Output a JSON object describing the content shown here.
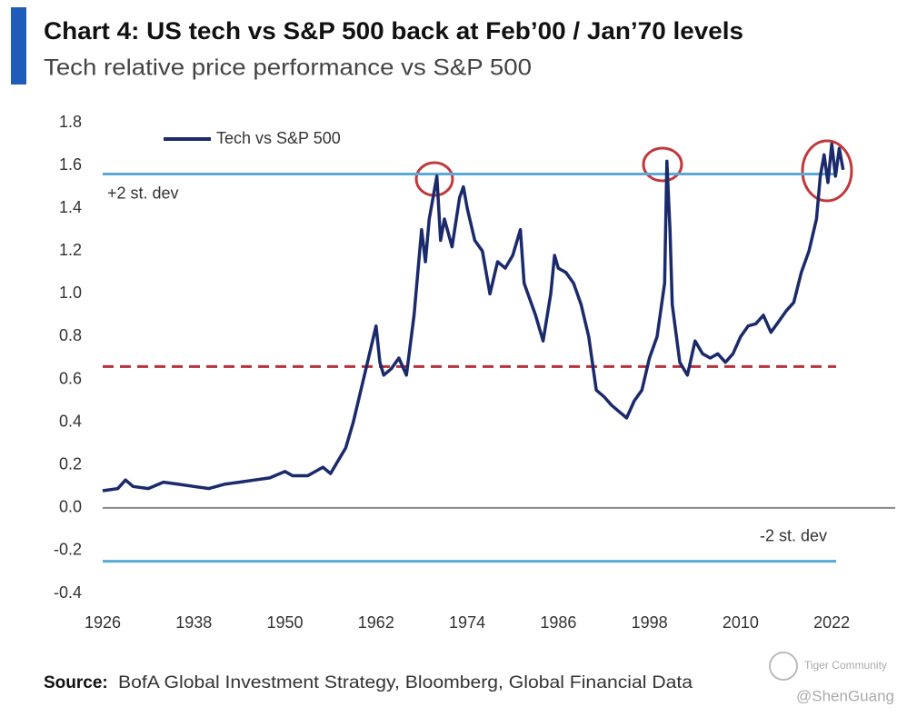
{
  "chart_data": {
    "type": "line",
    "title": "Chart 4: US tech vs S&P 500 back at Feb’00 / Jan’70 levels",
    "subtitle": "Tech relative price performance vs S&P 500",
    "source_label": "Source:",
    "source": "BofA Global Investment Strategy, Bloomberg, Global Financial Data",
    "watermark": [
      "Tiger Community",
      "@ShenGuang"
    ],
    "x": [
      1926,
      1928,
      1929,
      1930,
      1932,
      1934,
      1936,
      1938,
      1940,
      1942,
      1944,
      1946,
      1948,
      1950,
      1951,
      1953,
      1955,
      1956,
      1957,
      1958,
      1959,
      1960,
      1961,
      1962,
      1962.5,
      1963,
      1964,
      1965,
      1966,
      1967,
      1968,
      1968.5,
      1969,
      1970,
      1970.5,
      1971,
      1972,
      1973,
      1973.5,
      1974,
      1975,
      1976,
      1977,
      1978,
      1979,
      1980,
      1981,
      1981.5,
      1982,
      1983,
      1984,
      1985,
      1985.5,
      1986,
      1987,
      1988,
      1989,
      1990,
      1991,
      1992,
      1993,
      1994,
      1995,
      1996,
      1997,
      1998,
      1999,
      2000,
      2000.3,
      2000.7,
      2001,
      2002,
      2003,
      2004,
      2005,
      2006,
      2007,
      2008,
      2009,
      2010,
      2011,
      2012,
      2013,
      2014,
      2015,
      2016,
      2017,
      2018,
      2019,
      2020,
      2020.5,
      2021,
      2021.5,
      2022,
      2022.5,
      2023,
      2023.5
    ],
    "series": [
      {
        "name": "Tech vs  S&P 500",
        "color": "#1b2a6b",
        "values": [
          0.08,
          0.09,
          0.13,
          0.1,
          0.09,
          0.12,
          0.11,
          0.1,
          0.09,
          0.11,
          0.12,
          0.13,
          0.14,
          0.17,
          0.15,
          0.15,
          0.19,
          0.16,
          0.22,
          0.28,
          0.4,
          0.55,
          0.7,
          0.85,
          0.68,
          0.62,
          0.65,
          0.7,
          0.62,
          0.9,
          1.3,
          1.15,
          1.35,
          1.55,
          1.25,
          1.35,
          1.22,
          1.45,
          1.5,
          1.4,
          1.25,
          1.2,
          1.0,
          1.15,
          1.12,
          1.18,
          1.3,
          1.05,
          1.0,
          0.9,
          0.78,
          1.0,
          1.18,
          1.12,
          1.1,
          1.05,
          0.95,
          0.8,
          0.55,
          0.52,
          0.48,
          0.45,
          0.42,
          0.5,
          0.55,
          0.7,
          0.8,
          1.05,
          1.62,
          1.3,
          0.95,
          0.68,
          0.62,
          0.78,
          0.72,
          0.7,
          0.72,
          0.68,
          0.72,
          0.8,
          0.85,
          0.86,
          0.9,
          0.82,
          0.87,
          0.92,
          0.96,
          1.1,
          1.2,
          1.35,
          1.55,
          1.65,
          1.52,
          1.7,
          1.55,
          1.68,
          1.58
        ]
      }
    ],
    "reference_lines": [
      {
        "value": 1.56,
        "label": "+2 st. dev",
        "style": "solid",
        "color": "#5aa9d6"
      },
      {
        "value": 0.66,
        "style": "dashed",
        "color": "#b5303c"
      },
      {
        "value": -0.25,
        "label": "-2 st. dev",
        "style": "solid",
        "color": "#5aa9d6"
      }
    ],
    "xlim": [
      1926,
      2030
    ],
    "xticks": [
      1926,
      1938,
      1950,
      1962,
      1974,
      1986,
      1998,
      2010,
      2022
    ],
    "ylim": [
      -0.4,
      1.8
    ],
    "yticks": [
      -0.4,
      -0.2,
      {
        "value": 0,
        "label": "0.0"
      },
      0.2,
      0.4,
      0.6,
      0.8,
      {
        "value": 1,
        "label": "1.0"
      },
      1.2,
      1.4,
      1.6,
      1.8
    ],
    "legend": "upper left",
    "grid": false
  }
}
